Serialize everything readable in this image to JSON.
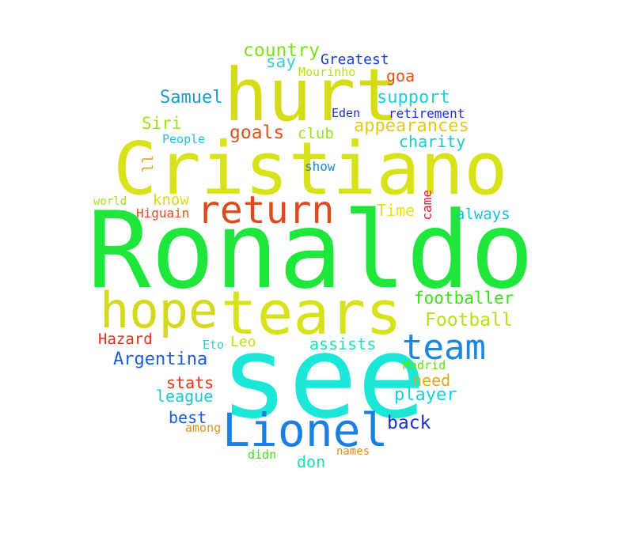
{
  "words": [
    {
      "text": "Ronaldo",
      "color": "#1ee63a"
    },
    {
      "text": "see",
      "color": "#1ce6d8"
    },
    {
      "text": "Cristiano",
      "color": "#d8e21a"
    },
    {
      "text": "hurt",
      "color": "#d6dc14"
    },
    {
      "text": "tears",
      "color": "#d8e21a"
    },
    {
      "text": "hope",
      "color": "#d6d81e"
    },
    {
      "text": "Lionel",
      "color": "#1a7fe0"
    },
    {
      "text": "team",
      "color": "#1a86e0"
    },
    {
      "text": "return",
      "color": "#e04a1a"
    },
    {
      "text": "country",
      "color": "#7ee01c"
    },
    {
      "text": "say",
      "color": "#3ec8d8"
    },
    {
      "text": "Greatest",
      "color": "#1a3ed4"
    },
    {
      "text": "Mourinho",
      "color": "#b8e01c"
    },
    {
      "text": "goa",
      "color": "#e0501a"
    },
    {
      "text": "Samuel",
      "color": "#1a98d0"
    },
    {
      "text": "support",
      "color": "#1ad0d8"
    },
    {
      "text": "Eden",
      "color": "#1a30c8"
    },
    {
      "text": "retirement",
      "color": "#1a30c8"
    },
    {
      "text": "Siri",
      "color": "#9ee01c"
    },
    {
      "text": "goals",
      "color": "#e0501a"
    },
    {
      "text": "club",
      "color": "#9ee01c"
    },
    {
      "text": "appearances",
      "color": "#e0c81c"
    },
    {
      "text": "People",
      "color": "#1ac0e0"
    },
    {
      "text": "charity",
      "color": "#1ac8c8"
    },
    {
      "text": "ll",
      "color": "#e0a01a"
    },
    {
      "text": "show",
      "color": "#1a86e0"
    },
    {
      "text": "know",
      "color": "#d8d81e"
    },
    {
      "text": "world",
      "color": "#9ee01c"
    },
    {
      "text": "Higuain",
      "color": "#e0501a"
    },
    {
      "text": "Time",
      "color": "#e8e020"
    },
    {
      "text": "came",
      "color": "#e01a3a"
    },
    {
      "text": "always",
      "color": "#1ac0e0"
    },
    {
      "text": "footballer",
      "color": "#3ee01c"
    },
    {
      "text": "Football",
      "color": "#b8e01c"
    },
    {
      "text": "Hazard",
      "color": "#e0301a"
    },
    {
      "text": "Eto",
      "color": "#3ec8c8"
    },
    {
      "text": "Leo",
      "color": "#b8e01c"
    },
    {
      "text": "assists",
      "color": "#1ae0b8"
    },
    {
      "text": "Argentina",
      "color": "#1a5ed4"
    },
    {
      "text": "Madrid",
      "color": "#5ee01c"
    },
    {
      "text": "stats",
      "color": "#e0301a"
    },
    {
      "text": "need",
      "color": "#e0a81a"
    },
    {
      "text": "league",
      "color": "#1ac8d8"
    },
    {
      "text": "player",
      "color": "#1ad0d8"
    },
    {
      "text": "best",
      "color": "#1a5ed4"
    },
    {
      "text": "back",
      "color": "#1a30c8"
    },
    {
      "text": "among",
      "color": "#e0901a"
    },
    {
      "text": "didn",
      "color": "#3ee01c"
    },
    {
      "text": "don",
      "color": "#1ae0b8"
    },
    {
      "text": "names",
      "color": "#e0901a"
    }
  ]
}
